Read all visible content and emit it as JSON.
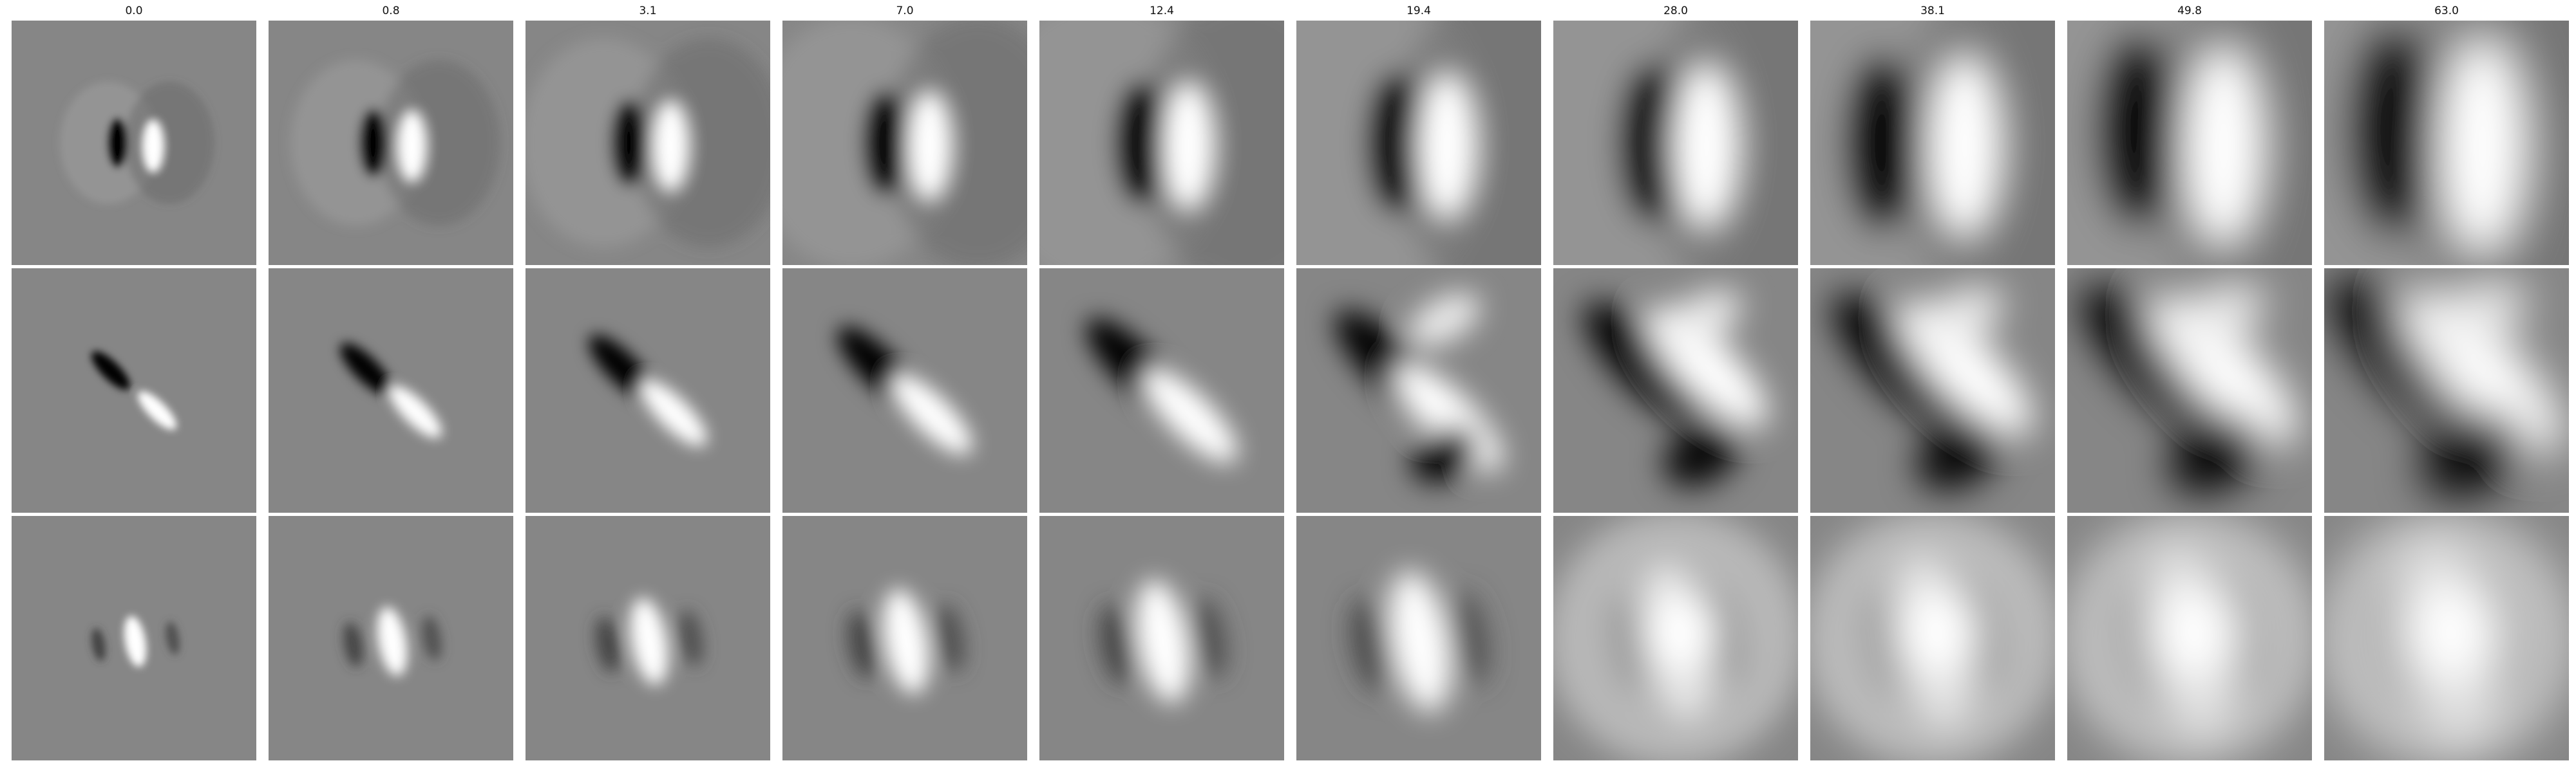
{
  "columns": [
    {
      "title": "0.0"
    },
    {
      "title": "0.8"
    },
    {
      "title": "3.1"
    },
    {
      "title": "7.0"
    },
    {
      "title": "12.4"
    },
    {
      "title": "19.4"
    },
    {
      "title": "28.0"
    },
    {
      "title": "38.1"
    },
    {
      "title": "49.8"
    },
    {
      "title": "63.0"
    }
  ],
  "rows": [
    {
      "content": "odd receptive field, vertical dark/light lobes (dark left, light right)"
    },
    {
      "content": "odd receptive field, diagonal dark/light lobes (dark upper-left, light lower-right)"
    },
    {
      "content": "even receptive field, bright center with dark flanks"
    }
  ]
}
